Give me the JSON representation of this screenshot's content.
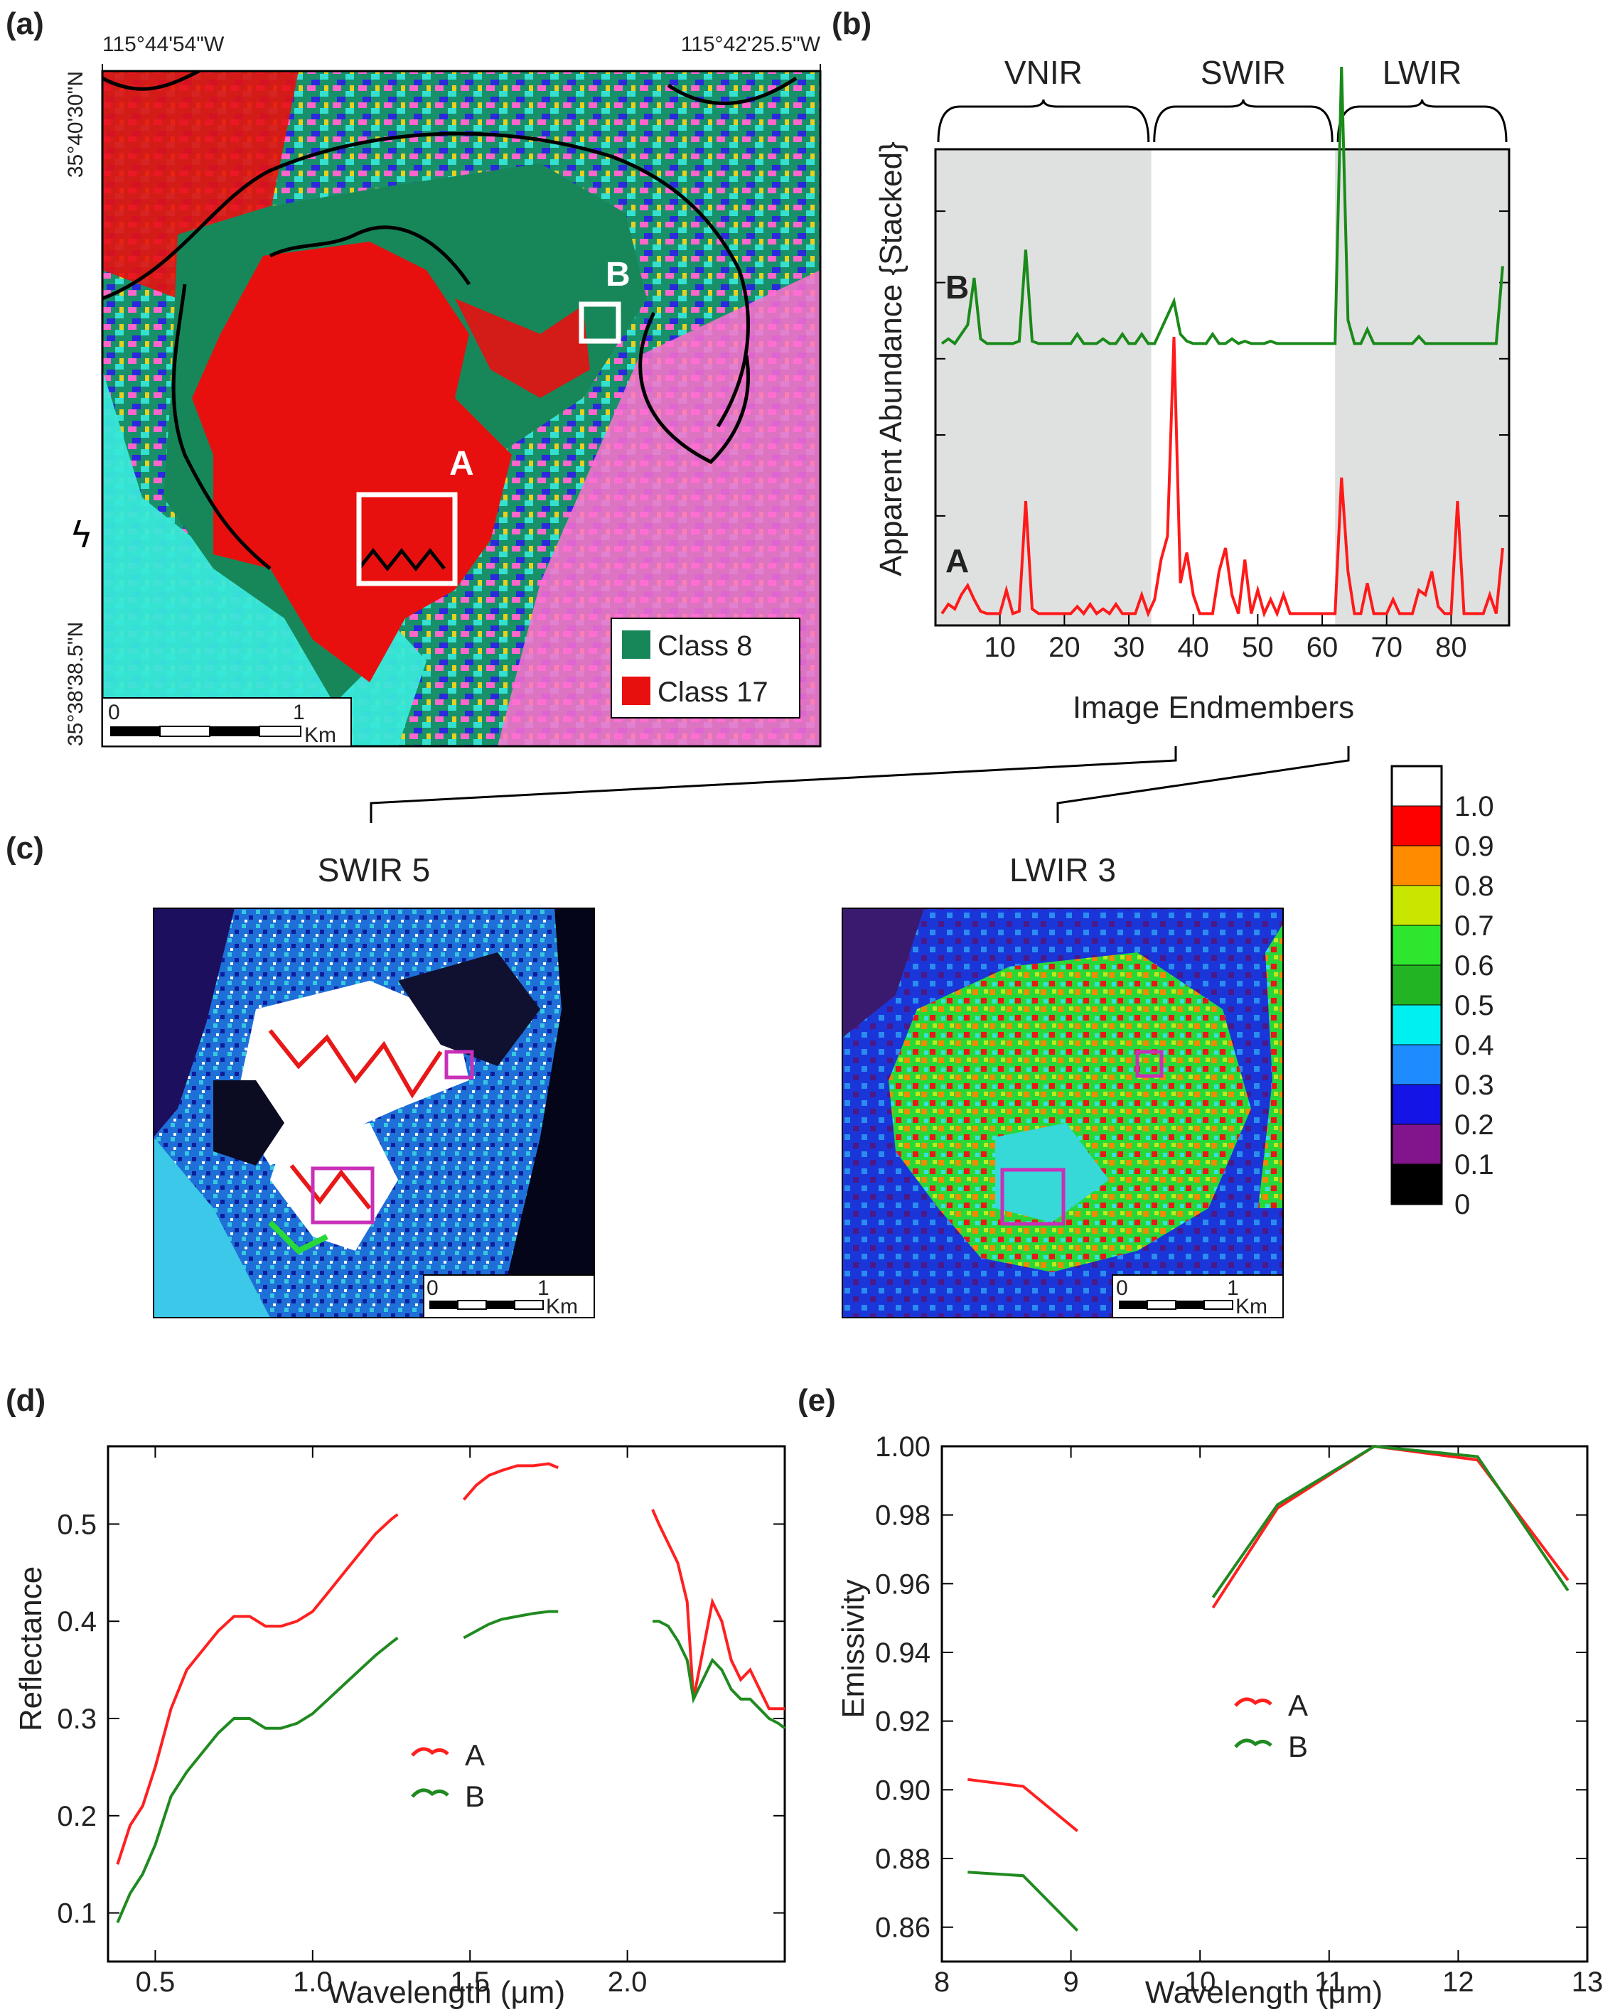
{
  "panels": {
    "a": "(a)",
    "b": "(b)",
    "c": "(c)",
    "d": "(d)",
    "e": "(e)"
  },
  "panel_a": {
    "coord_top_left": "115°44'54\"W",
    "coord_top_right": "115°42'25.5\"W",
    "coord_left_top": "35°40'30\"N",
    "coord_left_bottom": "35°38'38.5\"N",
    "label_A": "A",
    "label_B": "B",
    "legend": [
      {
        "label": "Class 8",
        "color": "#17875a"
      },
      {
        "label": "Class 17",
        "color": "#e8100f"
      }
    ],
    "scale_0": "0",
    "scale_1": "1",
    "scale_unit": "Km"
  },
  "panel_b": {
    "bands": [
      "VNIR",
      "SWIR",
      "LWIR"
    ],
    "ylabel": "Apparent Abundance {Stacked}",
    "xlabel": "Image Endmembers",
    "label_A": "A",
    "label_B": "B"
  },
  "panel_c": {
    "left_title": "SWIR 5",
    "right_title": "LWIR 3",
    "scale_0": "0",
    "scale_1": "1",
    "scale_unit": "Km",
    "colorbar_ticks": [
      "1.0",
      "0.9",
      "0.8",
      "0.7",
      "0.6",
      "0.5",
      "0.4",
      "0.3",
      "0.2",
      "0.1",
      "0"
    ],
    "colorbar_colors": [
      "#ffffff",
      "#ff0000",
      "#ff8c00",
      "#c8e600",
      "#2ee62e",
      "#22b422",
      "#00f0f0",
      "#1e8cff",
      "#1414e6",
      "#82148c",
      "#000000"
    ]
  },
  "chart_data": [
    {
      "type": "line",
      "title": "",
      "xlabel": "Image Endmembers",
      "ylabel": "Apparent Abundance {Stacked}",
      "xlim": [
        0,
        89
      ],
      "xticks": [
        "10",
        "20",
        "30",
        "40",
        "50",
        "60",
        "70",
        "80"
      ],
      "regions": [
        {
          "name": "VNIR",
          "range": [
            0,
            33.5
          ]
        },
        {
          "name": "SWIR",
          "range": [
            33.5,
            62
          ]
        },
        {
          "name": "LWIR",
          "range": [
            62,
            89
          ]
        }
      ],
      "series": [
        {
          "name": "A",
          "color": "#ff1a1a",
          "x": [
            1,
            2,
            3,
            4,
            5,
            6,
            7,
            8,
            9,
            10,
            11,
            12,
            13,
            14,
            15,
            16,
            17,
            18,
            19,
            20,
            21,
            22,
            23,
            24,
            25,
            26,
            27,
            28,
            29,
            30,
            31,
            32,
            33,
            34,
            35,
            36,
            37,
            38,
            39,
            40,
            41,
            42,
            43,
            44,
            45,
            46,
            47,
            48,
            49,
            50,
            51,
            52,
            53,
            54,
            55,
            56,
            57,
            58,
            59,
            60,
            61,
            62,
            63,
            64,
            65,
            66,
            67,
            68,
            69,
            70,
            71,
            72,
            73,
            74,
            75,
            76,
            77,
            78,
            79,
            80,
            81,
            82,
            83,
            84,
            85,
            86,
            87,
            88
          ],
          "y": [
            0.02,
            0.06,
            0.04,
            0.1,
            0.14,
            0.08,
            0.03,
            0.02,
            0.02,
            0.02,
            0.12,
            0.02,
            0.03,
            0.5,
            0.04,
            0.02,
            0.02,
            0.02,
            0.02,
            0.02,
            0.02,
            0.05,
            0.02,
            0.06,
            0.02,
            0.04,
            0.02,
            0.06,
            0.02,
            0.02,
            0.02,
            0.1,
            0.02,
            0.08,
            0.25,
            0.35,
            1.2,
            0.15,
            0.28,
            0.1,
            0.02,
            0.02,
            0.02,
            0.2,
            0.3,
            0.1,
            0.02,
            0.25,
            0.02,
            0.12,
            0.02,
            0.08,
            0.02,
            0.1,
            0.02,
            0.02,
            0.02,
            0.02,
            0.02,
            0.02,
            0.02,
            0.02,
            0.6,
            0.2,
            0.02,
            0.02,
            0.15,
            0.02,
            0.02,
            0.02,
            0.08,
            0.02,
            0.02,
            0.02,
            0.12,
            0.1,
            0.2,
            0.05,
            0.02,
            0.02,
            0.5,
            0.02,
            0.02,
            0.02,
            0.02,
            0.1,
            0.02,
            0.3
          ]
        },
        {
          "name": "B",
          "color": "#1a8a1a",
          "x": [
            1,
            2,
            3,
            4,
            5,
            6,
            7,
            8,
            9,
            10,
            11,
            12,
            13,
            14,
            15,
            16,
            17,
            18,
            19,
            20,
            21,
            22,
            23,
            24,
            25,
            26,
            27,
            28,
            29,
            30,
            31,
            32,
            33,
            34,
            35,
            36,
            37,
            38,
            39,
            40,
            41,
            42,
            43,
            44,
            45,
            46,
            47,
            48,
            49,
            50,
            51,
            52,
            53,
            54,
            55,
            56,
            57,
            58,
            59,
            60,
            61,
            62,
            63,
            64,
            65,
            66,
            67,
            68,
            69,
            70,
            71,
            72,
            73,
            74,
            75,
            76,
            77,
            78,
            79,
            80,
            81,
            82,
            83,
            84,
            85,
            86,
            87,
            88
          ],
          "y": [
            0.02,
            0.04,
            0.02,
            0.06,
            0.1,
            0.3,
            0.04,
            0.02,
            0.02,
            0.02,
            0.02,
            0.02,
            0.03,
            0.42,
            0.03,
            0.02,
            0.02,
            0.02,
            0.02,
            0.02,
            0.02,
            0.06,
            0.02,
            0.02,
            0.02,
            0.04,
            0.02,
            0.02,
            0.06,
            0.02,
            0.02,
            0.06,
            0.02,
            0.02,
            0.08,
            0.14,
            0.2,
            0.06,
            0.03,
            0.02,
            0.02,
            0.02,
            0.06,
            0.02,
            0.02,
            0.04,
            0.02,
            0.03,
            0.02,
            0.02,
            0.02,
            0.03,
            0.02,
            0.02,
            0.02,
            0.02,
            0.02,
            0.02,
            0.02,
            0.02,
            0.02,
            0.02,
            1.2,
            0.12,
            0.02,
            0.02,
            0.08,
            0.02,
            0.02,
            0.02,
            0.02,
            0.02,
            0.02,
            0.02,
            0.05,
            0.02,
            0.02,
            0.02,
            0.02,
            0.02,
            0.02,
            0.02,
            0.02,
            0.02,
            0.02,
            0.02,
            0.02,
            0.35
          ]
        }
      ]
    },
    {
      "type": "line",
      "title": "",
      "xlabel": "Wavelength (μm)",
      "ylabel": "Reflectance",
      "xlim": [
        0.35,
        2.5
      ],
      "ylim": [
        0.05,
        0.58
      ],
      "xticks": [
        "0.5",
        "1.0",
        "1.5",
        "2.0"
      ],
      "yticks": [
        "0.1",
        "0.2",
        "0.3",
        "0.4",
        "0.5"
      ],
      "legend": [
        "A",
        "B"
      ],
      "series": [
        {
          "name": "A",
          "color": "#ff2020",
          "segments": [
            {
              "x": [
                0.38,
                0.42,
                0.46,
                0.5,
                0.55,
                0.6,
                0.65,
                0.7,
                0.75,
                0.8,
                0.85,
                0.9,
                0.95,
                1.0,
                1.05,
                1.1,
                1.15,
                1.2,
                1.25,
                1.27
              ],
              "y": [
                0.15,
                0.19,
                0.21,
                0.25,
                0.31,
                0.35,
                0.37,
                0.39,
                0.405,
                0.405,
                0.395,
                0.395,
                0.4,
                0.41,
                0.43,
                0.45,
                0.47,
                0.49,
                0.505,
                0.51
              ]
            },
            {
              "x": [
                1.48,
                1.52,
                1.56,
                1.6,
                1.65,
                1.7,
                1.75,
                1.78
              ],
              "y": [
                0.525,
                0.54,
                0.55,
                0.555,
                0.56,
                0.56,
                0.562,
                0.558
              ]
            },
            {
              "x": [
                2.08,
                2.1,
                2.13,
                2.16,
                2.19,
                2.21,
                2.24,
                2.27,
                2.3,
                2.33,
                2.36,
                2.39,
                2.42,
                2.45,
                2.48,
                2.5
              ],
              "y": [
                0.515,
                0.5,
                0.48,
                0.46,
                0.42,
                0.32,
                0.37,
                0.42,
                0.4,
                0.36,
                0.34,
                0.35,
                0.33,
                0.31,
                0.31,
                0.31
              ]
            }
          ]
        },
        {
          "name": "B",
          "color": "#208a20",
          "segments": [
            {
              "x": [
                0.38,
                0.42,
                0.46,
                0.5,
                0.55,
                0.6,
                0.65,
                0.7,
                0.75,
                0.8,
                0.85,
                0.9,
                0.95,
                1.0,
                1.05,
                1.1,
                1.15,
                1.2,
                1.25,
                1.27
              ],
              "y": [
                0.09,
                0.12,
                0.14,
                0.17,
                0.22,
                0.245,
                0.265,
                0.285,
                0.3,
                0.3,
                0.29,
                0.29,
                0.295,
                0.305,
                0.32,
                0.335,
                0.35,
                0.365,
                0.378,
                0.383
              ]
            },
            {
              "x": [
                1.48,
                1.52,
                1.56,
                1.6,
                1.65,
                1.7,
                1.75,
                1.78
              ],
              "y": [
                0.383,
                0.39,
                0.397,
                0.402,
                0.405,
                0.408,
                0.41,
                0.41
              ]
            },
            {
              "x": [
                2.08,
                2.1,
                2.13,
                2.16,
                2.19,
                2.21,
                2.24,
                2.27,
                2.3,
                2.33,
                2.36,
                2.39,
                2.42,
                2.45,
                2.48,
                2.5
              ],
              "y": [
                0.4,
                0.4,
                0.395,
                0.38,
                0.36,
                0.32,
                0.34,
                0.36,
                0.35,
                0.33,
                0.32,
                0.32,
                0.31,
                0.3,
                0.295,
                0.29
              ]
            }
          ]
        }
      ]
    },
    {
      "type": "line",
      "title": "",
      "xlabel": "Wavelength (μm)",
      "ylabel": "Emissivity",
      "xlim": [
        8,
        13
      ],
      "ylim": [
        0.85,
        1.0
      ],
      "xticks": [
        "8",
        "9",
        "10",
        "11",
        "12",
        "13"
      ],
      "yticks": [
        "0.86",
        "0.88",
        "0.90",
        "0.92",
        "0.94",
        "0.96",
        "0.98",
        "1.00"
      ],
      "legend": [
        "A",
        "B"
      ],
      "series": [
        {
          "name": "A",
          "color": "#ff2020",
          "segments": [
            {
              "x": [
                8.2,
                8.63,
                9.05
              ],
              "y": [
                0.903,
                0.901,
                0.888
              ]
            },
            {
              "x": [
                10.1,
                10.6,
                11.35,
                12.15,
                12.85
              ],
              "y": [
                0.953,
                0.982,
                1.0,
                0.996,
                0.961
              ]
            }
          ]
        },
        {
          "name": "B",
          "color": "#208a20",
          "segments": [
            {
              "x": [
                8.2,
                8.63,
                9.05
              ],
              "y": [
                0.876,
                0.875,
                0.859
              ]
            },
            {
              "x": [
                10.1,
                10.6,
                11.35,
                12.15,
                12.85
              ],
              "y": [
                0.956,
                0.983,
                1.0,
                0.997,
                0.958
              ]
            }
          ]
        }
      ]
    }
  ]
}
